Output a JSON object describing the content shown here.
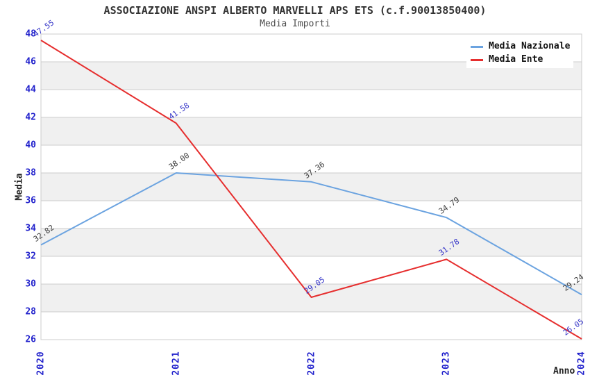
{
  "title": "ASSOCIAZIONE ANSPI ALBERTO MARVELLI APS ETS (c.f.90013850400)",
  "subtitle": "Media Importi",
  "legend": {
    "items": [
      {
        "label": "Media Nazionale",
        "color": "#6BA3E0"
      },
      {
        "label": "Media Ente",
        "color": "#E62E2E"
      }
    ]
  },
  "colors": {
    "grid_line": "#CCCCCC",
    "band_gray": "#F0F0F0",
    "band_white": "#FFFFFF",
    "tick_label_blue": "#2222CC",
    "title_gray": "#333333"
  },
  "chart_data": {
    "type": "line",
    "title": "ASSOCIAZIONE ANSPI ALBERTO MARVELLI APS ETS (c.f.90013850400)",
    "subtitle": "Media Importi",
    "x": [
      "2020",
      "2021",
      "2022",
      "2023",
      "2024"
    ],
    "series": [
      {
        "name": "Media Nazionale",
        "values": [
          32.82,
          38.0,
          37.36,
          34.79,
          29.24
        ],
        "color": "#6BA3E0",
        "label_color": "#3A3A3A"
      },
      {
        "name": "Media Ente",
        "values": [
          47.55,
          41.58,
          29.05,
          31.78,
          26.05
        ],
        "color": "#E62E2E",
        "label_color": "#3535C8"
      }
    ],
    "xlabel": "Anno",
    "ylabel": "Media",
    "ylim": [
      26,
      48
    ],
    "ytick_step": 2,
    "grid": true,
    "band_fill": true,
    "legend_position": "top-right",
    "label_decimals": 2
  }
}
